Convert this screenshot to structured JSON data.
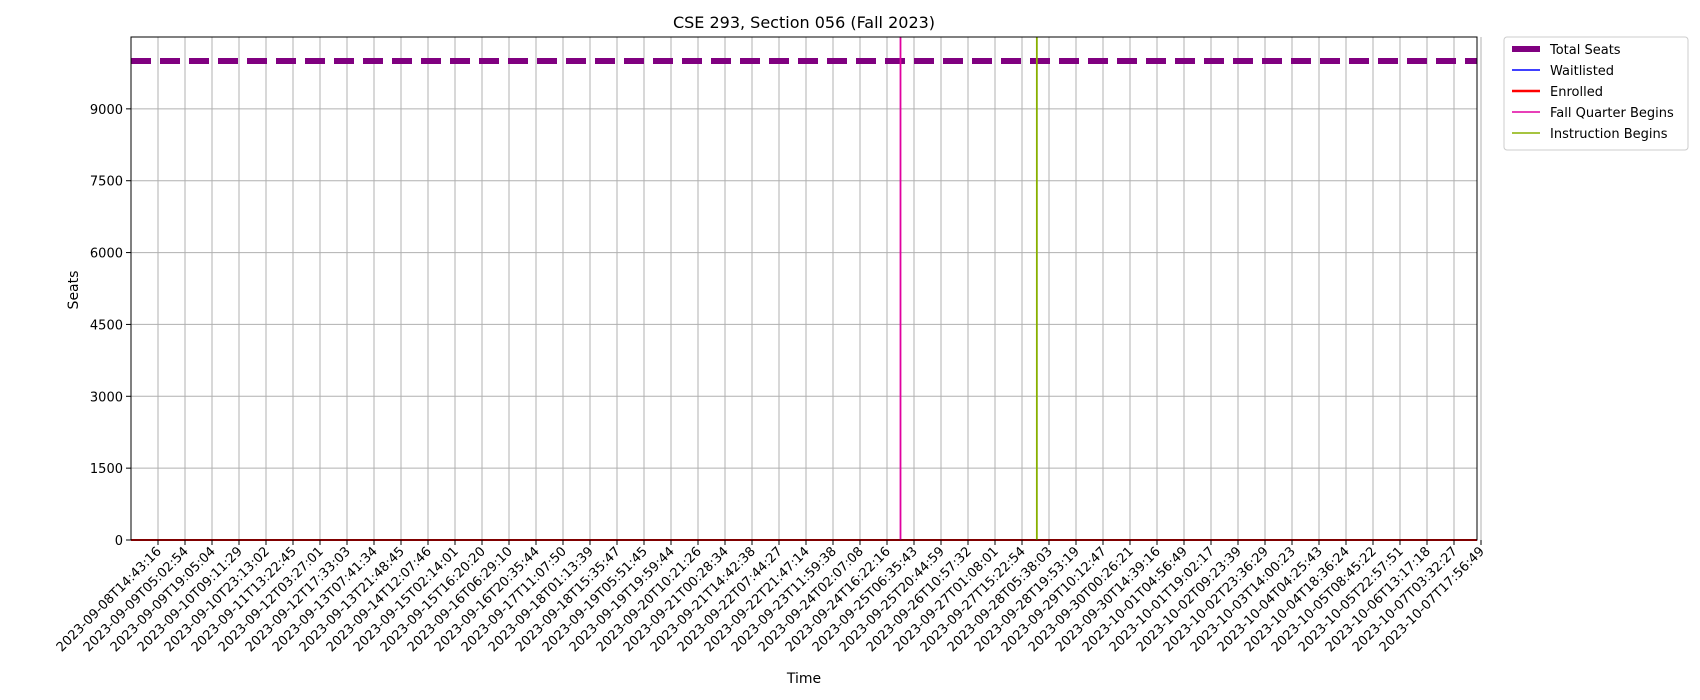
{
  "chart_data": {
    "type": "line",
    "title": "CSE 293, Section 056 (Fall 2023)",
    "xlabel": "Time",
    "ylabel": "Seats",
    "x_tick_labels": [
      "2023-09-08T14:43:16",
      "2023-09-09T05:02:54",
      "2023-09-09T19:05:04",
      "2023-09-10T09:11:29",
      "2023-09-10T23:13:02",
      "2023-09-11T13:22:45",
      "2023-09-12T03:27:01",
      "2023-09-12T17:33:03",
      "2023-09-13T07:41:34",
      "2023-09-13T21:48:45",
      "2023-09-14T12:07:46",
      "2023-09-15T02:14:01",
      "2023-09-15T16:20:20",
      "2023-09-16T06:29:10",
      "2023-09-16T20:35:44",
      "2023-09-17T11:07:50",
      "2023-09-18T01:13:39",
      "2023-09-18T15:35:47",
      "2023-09-19T05:51:45",
      "2023-09-19T19:59:44",
      "2023-09-20T10:21:26",
      "2023-09-21T00:28:34",
      "2023-09-21T14:42:38",
      "2023-09-22T07:44:27",
      "2023-09-22T21:47:14",
      "2023-09-23T11:59:38",
      "2023-09-24T02:07:08",
      "2023-09-24T16:22:16",
      "2023-09-25T06:35:43",
      "2023-09-25T20:44:59",
      "2023-09-26T10:57:32",
      "2023-09-27T01:08:01",
      "2023-09-27T15:22:54",
      "2023-09-28T05:38:03",
      "2023-09-28T19:53:19",
      "2023-09-29T10:12:47",
      "2023-09-30T00:26:21",
      "2023-09-30T14:39:16",
      "2023-10-01T04:56:49",
      "2023-10-01T19:02:17",
      "2023-10-02T09:23:39",
      "2023-10-02T23:36:29",
      "2023-10-03T14:00:23",
      "2023-10-04T04:25:43",
      "2023-10-04T18:36:24",
      "2023-10-05T08:45:22",
      "2023-10-05T22:57:51",
      "2023-10-06T13:17:18",
      "2023-10-07T03:32:27",
      "2023-10-07T17:56:49"
    ],
    "ylim": [
      0,
      10500
    ],
    "y_ticks": [
      0,
      1500,
      3000,
      4500,
      6000,
      7500,
      9000
    ],
    "grid": true,
    "legend_position": "outside top-right",
    "series": [
      {
        "name": "Total Seats",
        "value": 10000,
        "color": "#800080",
        "style": "dashed"
      },
      {
        "name": "Waitlisted",
        "value": 0,
        "color": "#0000ff",
        "style": "solid"
      },
      {
        "name": "Enrolled",
        "value": 0,
        "color": "#ff0000",
        "style": "solid"
      }
    ],
    "vertical_markers": [
      {
        "name": "Fall Quarter Begins",
        "x_index": 27.5,
        "color": "#e000a0"
      },
      {
        "name": "Instruction Begins",
        "x_index": 32.55,
        "color": "#88b000"
      }
    ]
  }
}
